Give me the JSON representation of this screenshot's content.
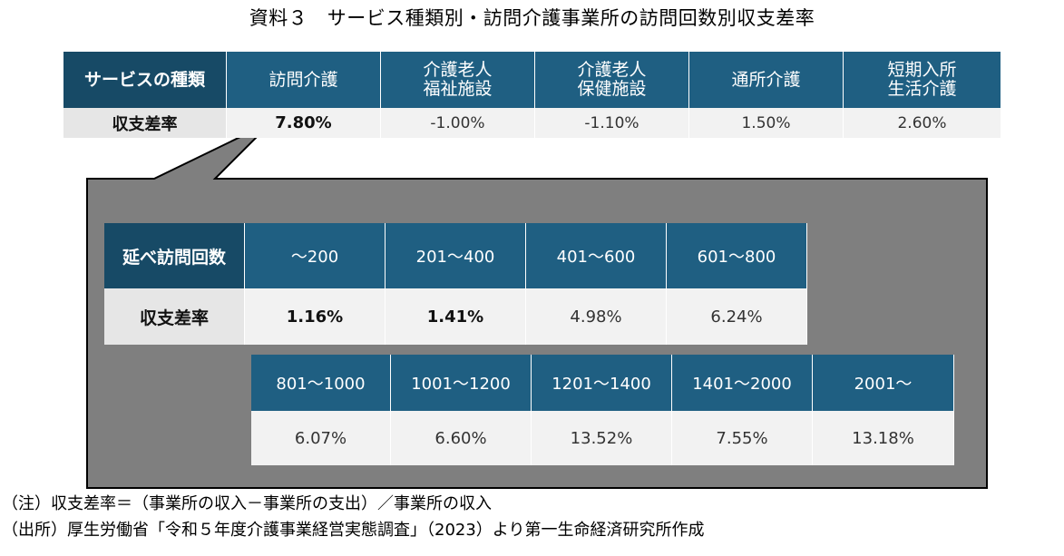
{
  "title": "資料３　サービス種類別・訪問介護事業所の訪問回数別収支差率",
  "service_table": {
    "header_label": "サービスの種類",
    "row_label": "収支差率",
    "columns": [
      {
        "name_line1": "訪問介護",
        "name_line2": "",
        "value": "7.80%"
      },
      {
        "name_line1": "介護老人",
        "name_line2": "福祉施設",
        "value": "-1.00%"
      },
      {
        "name_line1": "介護老人",
        "name_line2": "保健施設",
        "value": "-1.10%"
      },
      {
        "name_line1": "通所介護",
        "name_line2": "",
        "value": "1.50%"
      },
      {
        "name_line1": "短期入所",
        "name_line2": "生活介護",
        "value": "2.60%"
      }
    ]
  },
  "visit_table": {
    "header_label": "延べ訪問回数",
    "row_label": "収支差率",
    "row1": [
      {
        "range": "～200",
        "value": "1.16%"
      },
      {
        "range": "201～400",
        "value": "1.41%"
      },
      {
        "range": "401～600",
        "value": "4.98%"
      },
      {
        "range": "601～800",
        "value": "6.24%"
      }
    ],
    "row2": [
      {
        "range": "801～1000",
        "value": "6.07%"
      },
      {
        "range": "1001～1200",
        "value": "6.60%"
      },
      {
        "range": "1201～1400",
        "value": "13.52%"
      },
      {
        "range": "1401～2000",
        "value": "7.55%"
      },
      {
        "range": "2001～",
        "value": "13.18%"
      }
    ]
  },
  "notes": {
    "note": "（注）収支差率＝（事業所の収入－事業所の支出）／事業所の収入",
    "source": "（出所）厚生労働省「令和５年度介護事業経営実態調査」（2023）より第一生命経済研究所作成"
  },
  "colors": {
    "header": "#1f5f82",
    "header_dark": "#174a66",
    "body": "#f2f2f2",
    "callout": "#7f7f7f"
  }
}
